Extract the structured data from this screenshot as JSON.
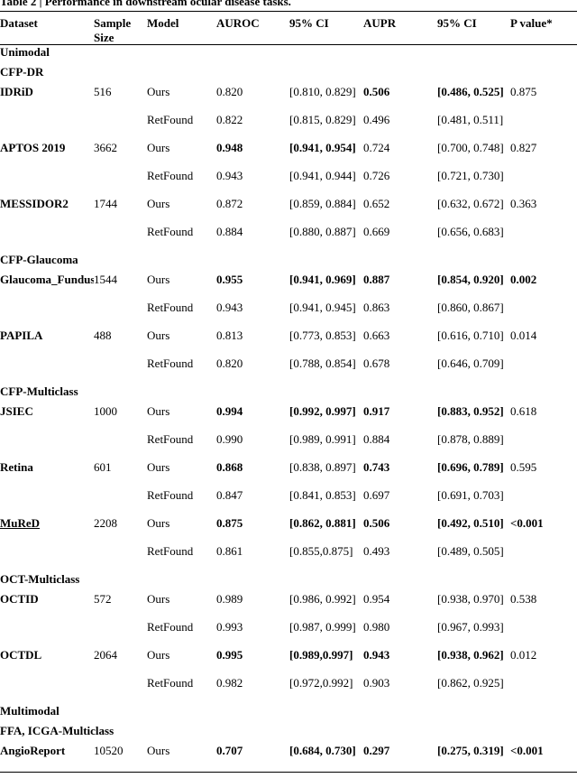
{
  "caption": "Table 2 | Performance in downstream ocular disease tasks.",
  "columns": [
    "Dataset",
    "Sample Size",
    "Model",
    "AUROC",
    "95% CI",
    "AUPR",
    "95% CI",
    "P value*"
  ],
  "rows": [
    {
      "type": "section",
      "label": "Unimodal"
    },
    {
      "type": "section",
      "label": "CFP-DR"
    },
    {
      "type": "data",
      "dataset": "IDRiD",
      "size": "516",
      "model": "Ours",
      "auroc": "0.820",
      "auroc_ci": "[0.810, 0.829]",
      "aupr": "0.506",
      "aupr_ci": "[0.486, 0.525]",
      "p": "0.875",
      "bold": [
        "aupr",
        "aupr_ci"
      ]
    },
    {
      "type": "data",
      "dataset": "",
      "size": "",
      "model": "RetFound",
      "auroc": "0.822",
      "auroc_ci": "[0.815, 0.829]",
      "aupr": "0.496",
      "aupr_ci": "[0.481, 0.511]",
      "p": "",
      "bold": []
    },
    {
      "type": "data",
      "dataset": "APTOS 2019",
      "size": "3662",
      "model": "Ours",
      "auroc": "0.948",
      "auroc_ci": "[0.941, 0.954]",
      "aupr": "0.724",
      "aupr_ci": "[0.700, 0.748]",
      "p": "0.827",
      "bold": [
        "auroc",
        "auroc_ci"
      ]
    },
    {
      "type": "data",
      "dataset": "",
      "size": "",
      "model": "RetFound",
      "auroc": "0.943",
      "auroc_ci": "[0.941, 0.944]",
      "aupr": "0.726",
      "aupr_ci": "[0.721, 0.730]",
      "p": "",
      "bold": []
    },
    {
      "type": "data",
      "dataset": "MESSIDOR2",
      "size": "1744",
      "model": "Ours",
      "auroc": "0.872",
      "auroc_ci": "[0.859, 0.884]",
      "aupr": "0.652",
      "aupr_ci": "[0.632, 0.672]",
      "p": "0.363",
      "bold": []
    },
    {
      "type": "data",
      "dataset": "",
      "size": "",
      "model": "RetFound",
      "auroc": "0.884",
      "auroc_ci": "[0.880, 0.887]",
      "aupr": "0.669",
      "aupr_ci": "[0.656, 0.683]",
      "p": "",
      "bold": []
    },
    {
      "type": "section",
      "label": "CFP-Glaucoma"
    },
    {
      "type": "data",
      "dataset": "Glaucoma_Fundus",
      "size": "1544",
      "model": "Ours",
      "auroc": "0.955",
      "auroc_ci": "[0.941, 0.969]",
      "aupr": "0.887",
      "aupr_ci": "[0.854, 0.920]",
      "p": "0.002",
      "bold": [
        "auroc",
        "auroc_ci",
        "aupr",
        "aupr_ci",
        "p"
      ]
    },
    {
      "type": "data",
      "dataset": "",
      "size": "",
      "model": "RetFound",
      "auroc": "0.943",
      "auroc_ci": "[0.941, 0.945]",
      "aupr": "0.863",
      "aupr_ci": "[0.860, 0.867]",
      "p": "",
      "bold": []
    },
    {
      "type": "data",
      "dataset": "PAPILA",
      "size": "488",
      "model": "Ours",
      "auroc": "0.813",
      "auroc_ci": "[0.773, 0.853]",
      "aupr": "0.663",
      "aupr_ci": "[0.616, 0.710]",
      "p": "0.014",
      "bold": []
    },
    {
      "type": "data",
      "dataset": "",
      "size": "",
      "model": "RetFound",
      "auroc": "0.820",
      "auroc_ci": "[0.788, 0.854]",
      "aupr": "0.678",
      "aupr_ci": "[0.646, 0.709]",
      "p": "",
      "bold": []
    },
    {
      "type": "section",
      "label": "CFP-Multiclass"
    },
    {
      "type": "data",
      "dataset": "JSIEC",
      "size": "1000",
      "model": "Ours",
      "auroc": "0.994",
      "auroc_ci": "[0.992, 0.997]",
      "aupr": "0.917",
      "aupr_ci": "[0.883, 0.952]",
      "p": "0.618",
      "bold": [
        "auroc",
        "auroc_ci",
        "aupr",
        "aupr_ci"
      ]
    },
    {
      "type": "data",
      "dataset": "",
      "size": "",
      "model": "RetFound",
      "auroc": "0.990",
      "auroc_ci": "[0.989, 0.991]",
      "aupr": "0.884",
      "aupr_ci": "[0.878, 0.889]",
      "p": "",
      "bold": []
    },
    {
      "type": "data",
      "dataset": "Retina",
      "size": "601",
      "model": "Ours",
      "auroc": "0.868",
      "auroc_ci": "[0.838, 0.897]",
      "aupr": "0.743",
      "aupr_ci": "[0.696, 0.789]",
      "p": "0.595",
      "bold": [
        "auroc",
        "aupr",
        "aupr_ci"
      ]
    },
    {
      "type": "data",
      "dataset": "",
      "size": "",
      "model": "RetFound",
      "auroc": "0.847",
      "auroc_ci": "[0.841, 0.853]",
      "aupr": "0.697",
      "aupr_ci": "[0.691, 0.703]",
      "p": "",
      "bold": []
    },
    {
      "type": "data",
      "dataset": "MuReD",
      "size": "2208",
      "model": "Ours",
      "auroc": "0.875",
      "auroc_ci": "[0.862, 0.881]",
      "aupr": "0.506",
      "aupr_ci": "[0.492, 0.510]",
      "p": "<0.001",
      "bold": [
        "auroc",
        "auroc_ci",
        "aupr",
        "aupr_ci",
        "p"
      ],
      "underline": true
    },
    {
      "type": "data",
      "dataset": "",
      "size": "",
      "model": "RetFound",
      "auroc": "0.861",
      "auroc_ci": "[0.855,0.875]",
      "aupr": "0.493",
      "aupr_ci": "[0.489, 0.505]",
      "p": "",
      "bold": []
    },
    {
      "type": "section",
      "label": "OCT-Multiclass"
    },
    {
      "type": "data",
      "dataset": "OCTID",
      "size": "572",
      "model": "Ours",
      "auroc": "0.989",
      "auroc_ci": "[0.986, 0.992]",
      "aupr": "0.954",
      "aupr_ci": "[0.938, 0.970]",
      "p": "0.538",
      "bold": []
    },
    {
      "type": "data",
      "dataset": "",
      "size": "",
      "model": "RetFound",
      "auroc": "0.993",
      "auroc_ci": "[0.987, 0.999]",
      "aupr": "0.980",
      "aupr_ci": "[0.967, 0.993]",
      "p": "",
      "bold": []
    },
    {
      "type": "data",
      "dataset": "OCTDL",
      "size": "2064",
      "model": "Ours",
      "auroc": "0.995",
      "auroc_ci": "[0.989,0.997]",
      "aupr": "0.943",
      "aupr_ci": "[0.938, 0.962]",
      "p": "0.012",
      "bold": [
        "auroc",
        "auroc_ci",
        "aupr",
        "aupr_ci"
      ]
    },
    {
      "type": "data",
      "dataset": "",
      "size": "",
      "model": "RetFound",
      "auroc": "0.982",
      "auroc_ci": "[0.972,0.992]",
      "aupr": "0.903",
      "aupr_ci": "[0.862, 0.925]",
      "p": "",
      "bold": []
    },
    {
      "type": "section",
      "label": "Multimodal"
    },
    {
      "type": "section",
      "label": "FFA, ICGA-Multiclass"
    },
    {
      "type": "data",
      "dataset": "AngioReport",
      "size": "10520",
      "model": "Ours",
      "auroc": "0.707",
      "auroc_ci": "[0.684, 0.730]",
      "aupr": "0.297",
      "aupr_ci": "[0.275, 0.319]",
      "p": "<0.001",
      "bold": [
        "auroc",
        "auroc_ci",
        "aupr",
        "aupr_ci",
        "p"
      ],
      "middle": true
    }
  ]
}
